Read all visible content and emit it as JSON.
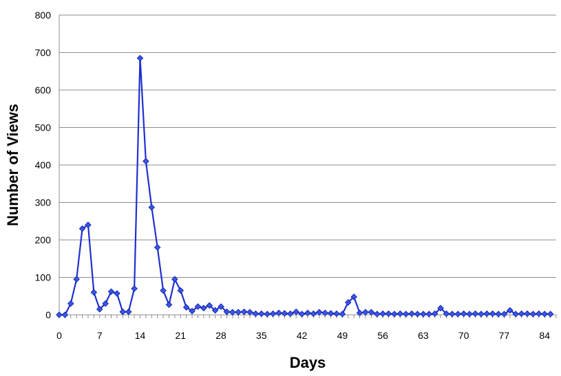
{
  "chart_data": {
    "type": "line",
    "xlabel": "Days",
    "ylabel": "Number of Views",
    "xlim": [
      0,
      86
    ],
    "ylim": [
      0,
      800
    ],
    "x_ticks": [
      0,
      7,
      14,
      21,
      28,
      35,
      42,
      49,
      56,
      63,
      70,
      77,
      84
    ],
    "y_ticks": [
      0,
      100,
      200,
      300,
      400,
      500,
      600,
      700,
      800
    ],
    "grid": "horizontal",
    "legend": "none",
    "colors": {
      "line": "#1f2fd0",
      "marker": "#3a56e8",
      "marker_edge": "#0a1aa0"
    },
    "series": [
      {
        "values": [
          0,
          0,
          30,
          95,
          230,
          240,
          60,
          15,
          30,
          62,
          57,
          8,
          8,
          70,
          685,
          410,
          287,
          180,
          65,
          27,
          95,
          65,
          20,
          10,
          22,
          18,
          25,
          12,
          22,
          8,
          7,
          7,
          8,
          7,
          3,
          3,
          2,
          3,
          5,
          4,
          3,
          8,
          2,
          5,
          3,
          7,
          5,
          4,
          3,
          2,
          33,
          48,
          5,
          7,
          7,
          2,
          3,
          3,
          2,
          3,
          2,
          3,
          2,
          2,
          2,
          3,
          18,
          3,
          2,
          2,
          3,
          2,
          3,
          2,
          3,
          3,
          2,
          2,
          12,
          2,
          3,
          3,
          2,
          3,
          2,
          2
        ]
      }
    ]
  }
}
